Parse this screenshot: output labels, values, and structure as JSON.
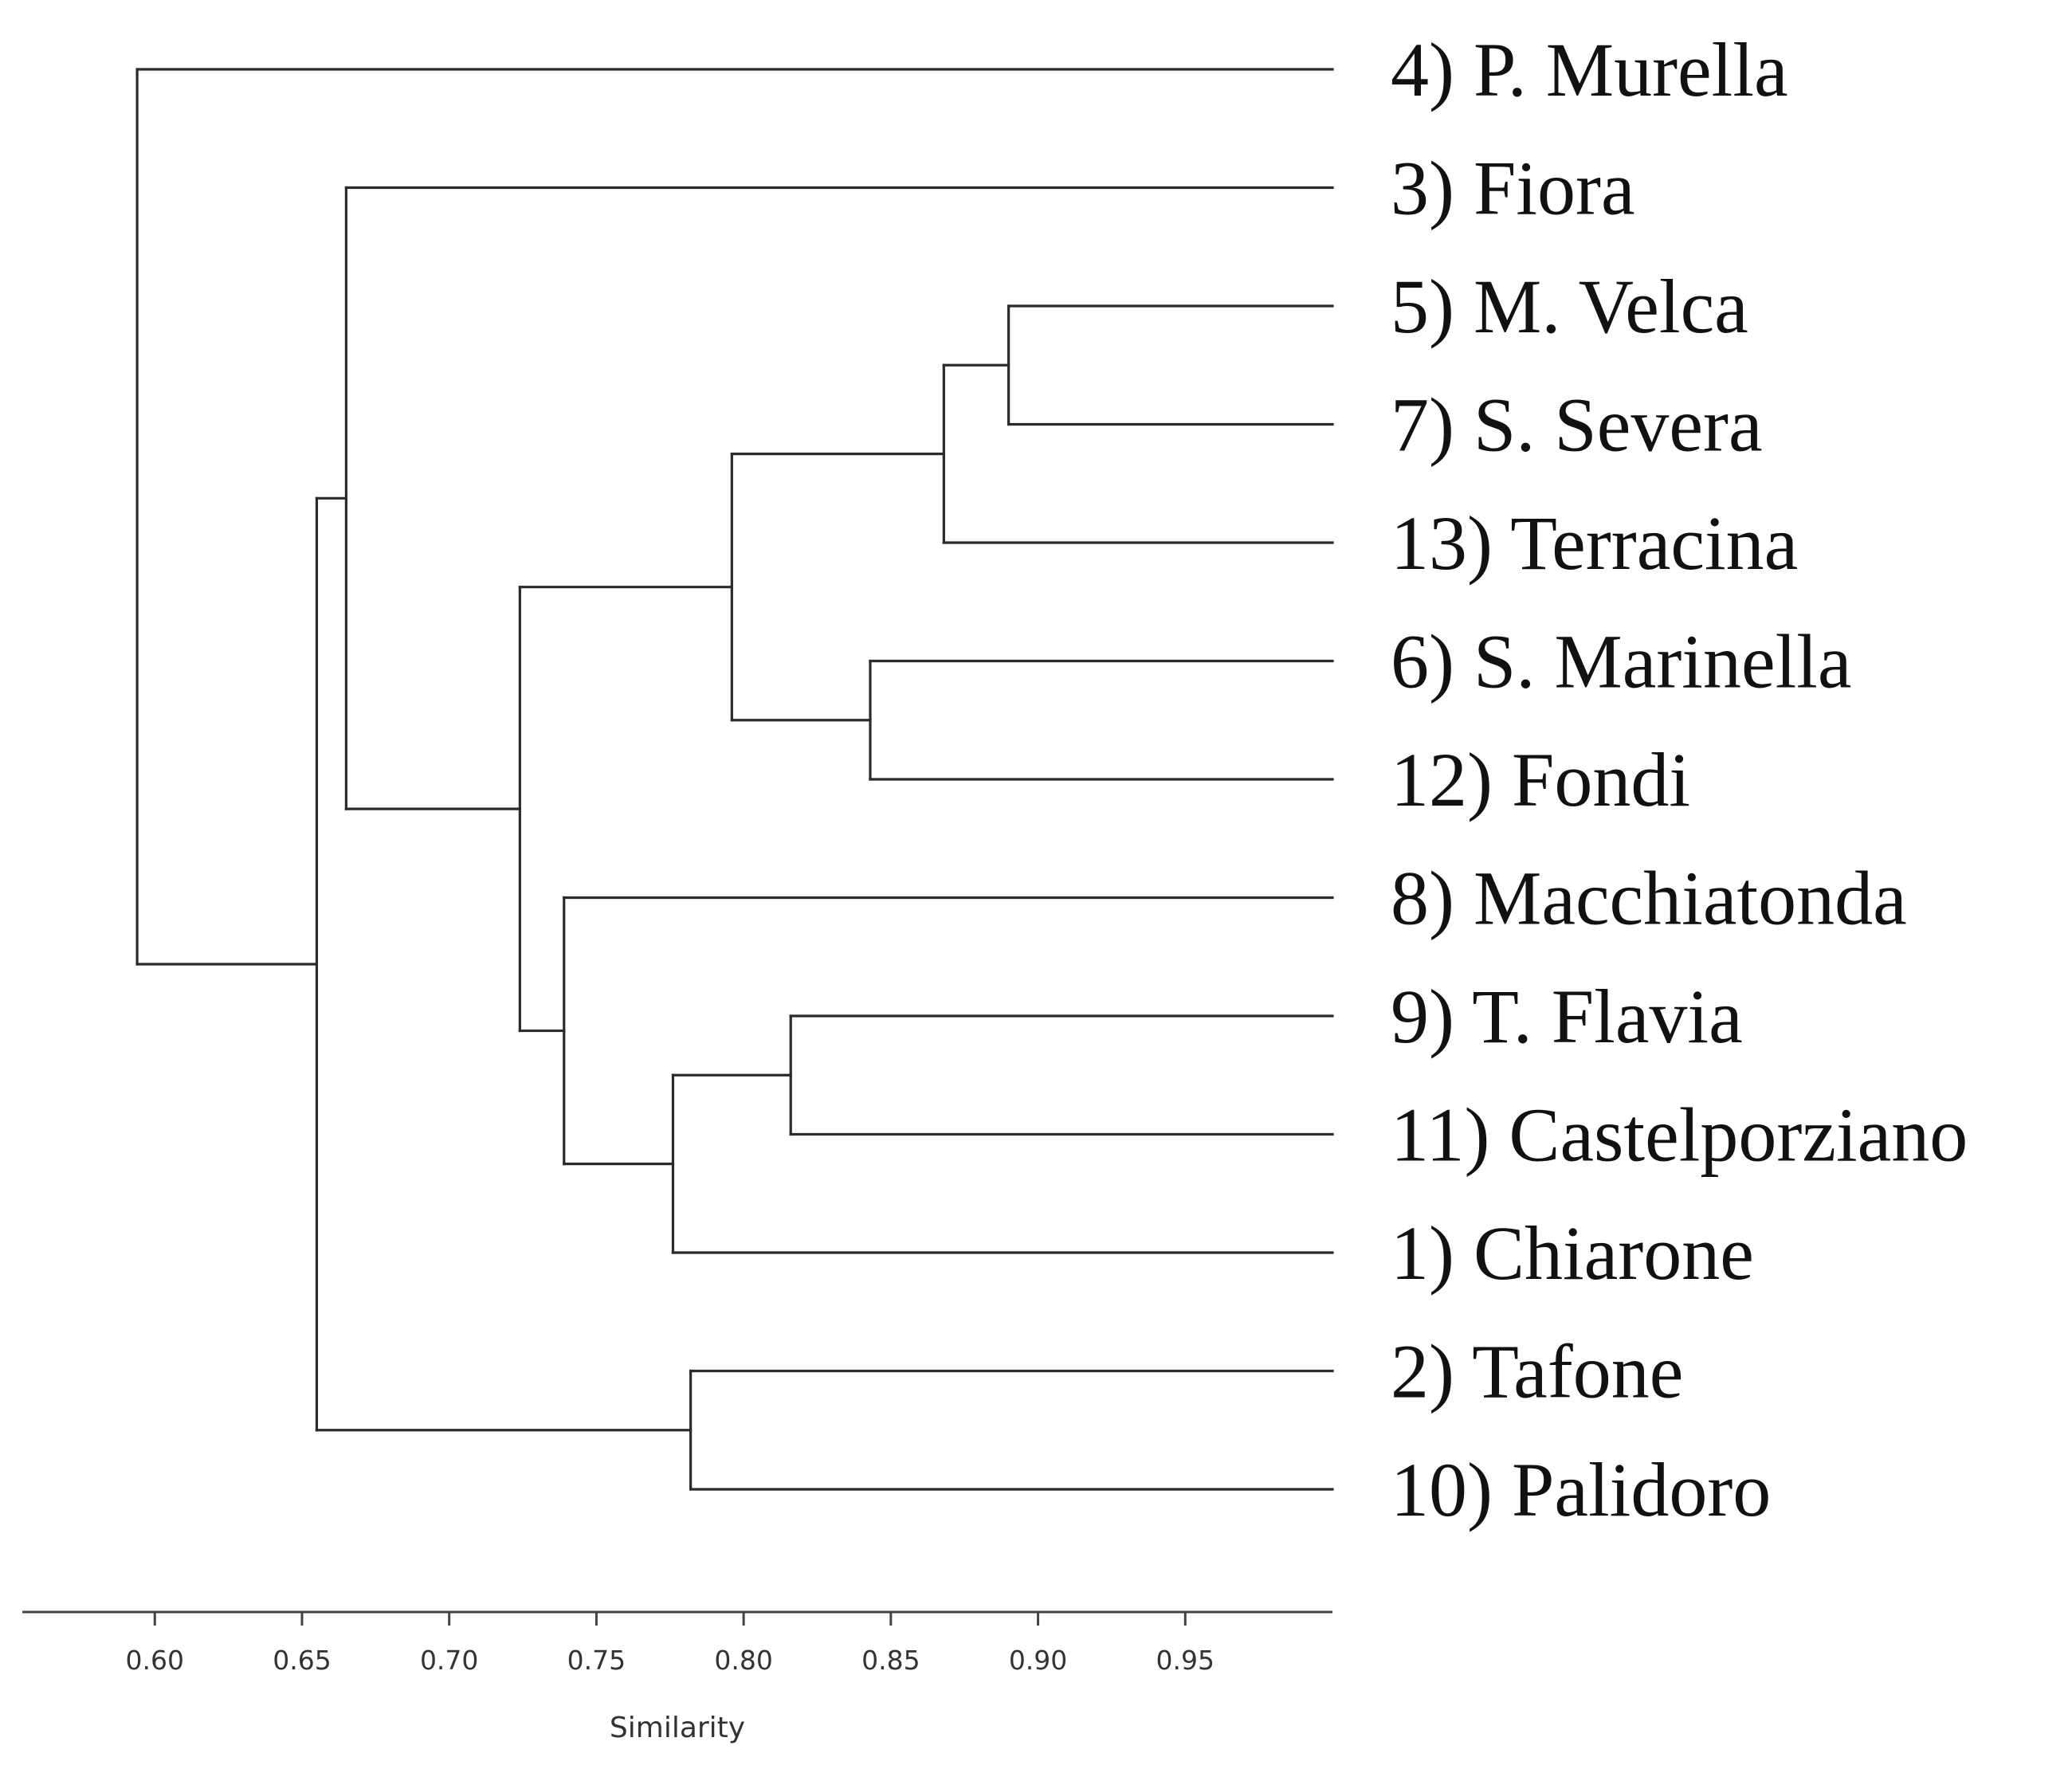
{
  "chart_data": {
    "type": "dendrogram",
    "orientation": "horizontal",
    "xlabel": "Similarity",
    "xlim": [
      0.555,
      1.0
    ],
    "xticks": [
      "0.60",
      "0.65",
      "0.70",
      "0.75",
      "0.80",
      "0.85",
      "0.90",
      "0.95"
    ],
    "leaves": [
      {
        "id": "4",
        "label": "4) P. Murella"
      },
      {
        "id": "3",
        "label": "3) Fiora"
      },
      {
        "id": "5",
        "label": "5) M. Velca"
      },
      {
        "id": "7",
        "label": "7) S. Severa"
      },
      {
        "id": "13",
        "label": "13) Terracina"
      },
      {
        "id": "6",
        "label": "6) S. Marinella"
      },
      {
        "id": "12",
        "label": "12) Fondi"
      },
      {
        "id": "8",
        "label": "8) Macchiatonda"
      },
      {
        "id": "9",
        "label": "9) T. Flavia"
      },
      {
        "id": "11",
        "label": "11) Castelporziano"
      },
      {
        "id": "1",
        "label": "1) Chiarone"
      },
      {
        "id": "2",
        "label": "2) Tafone"
      },
      {
        "id": "10",
        "label": "10) Palidoro"
      }
    ],
    "merges": [
      {
        "id": "m1",
        "children": [
          "5",
          "7"
        ],
        "similarity": 0.89
      },
      {
        "id": "m2",
        "children": [
          "m1",
          "13"
        ],
        "similarity": 0.868
      },
      {
        "id": "m3",
        "children": [
          "6",
          "12"
        ],
        "similarity": 0.843
      },
      {
        "id": "m4",
        "children": [
          "9",
          "11"
        ],
        "similarity": 0.816
      },
      {
        "id": "m5",
        "children": [
          "m2",
          "m3"
        ],
        "similarity": 0.796
      },
      {
        "id": "m6",
        "children": [
          "2",
          "10"
        ],
        "similarity": 0.782
      },
      {
        "id": "m7",
        "children": [
          "m4",
          "1"
        ],
        "similarity": 0.776
      },
      {
        "id": "m8",
        "children": [
          "8",
          "m7"
        ],
        "similarity": 0.739
      },
      {
        "id": "m9",
        "children": [
          "m5",
          "m8"
        ],
        "similarity": 0.724
      },
      {
        "id": "m10",
        "children": [
          "3",
          "m9"
        ],
        "similarity": 0.665
      },
      {
        "id": "m11",
        "children": [
          "m10",
          "m6"
        ],
        "similarity": 0.655
      },
      {
        "id": "m12",
        "children": [
          "4",
          "m11"
        ],
        "similarity": 0.594
      }
    ]
  }
}
